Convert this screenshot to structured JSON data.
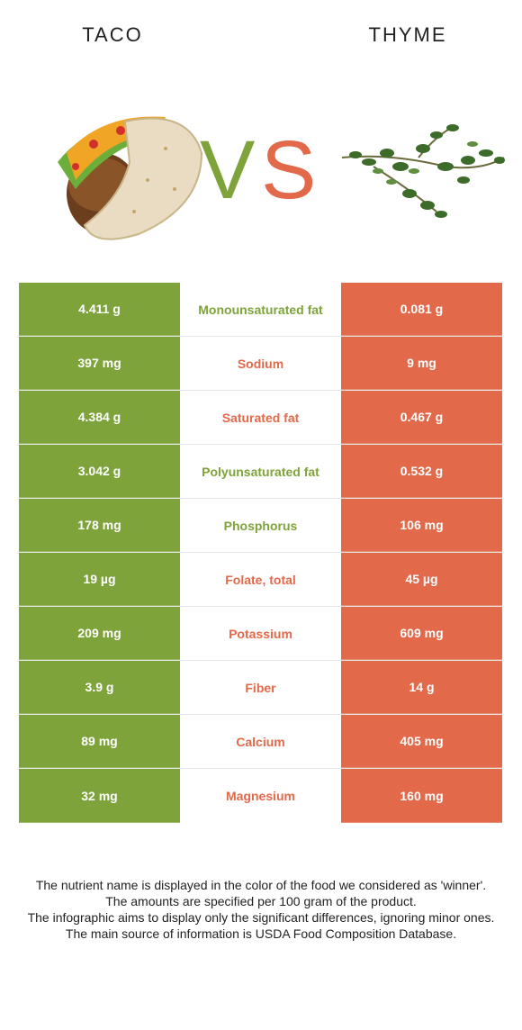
{
  "header": {
    "left_food": "TACO",
    "right_food": "THYME",
    "vs_label": "VS"
  },
  "colors": {
    "winner_left": "#7ea33a",
    "winner_right": "#e2694a"
  },
  "comparison": [
    {
      "nutrient": "Monounsaturated fat",
      "left": "4.411 g",
      "right": "0.081 g",
      "winner": "left"
    },
    {
      "nutrient": "Sodium",
      "left": "397 mg",
      "right": "9 mg",
      "winner": "right"
    },
    {
      "nutrient": "Saturated fat",
      "left": "4.384 g",
      "right": "0.467 g",
      "winner": "right"
    },
    {
      "nutrient": "Polyunsaturated fat",
      "left": "3.042 g",
      "right": "0.532 g",
      "winner": "left"
    },
    {
      "nutrient": "Phosphorus",
      "left": "178 mg",
      "right": "106 mg",
      "winner": "left"
    },
    {
      "nutrient": "Folate, total",
      "left": "19 µg",
      "right": "45 µg",
      "winner": "right"
    },
    {
      "nutrient": "Potassium",
      "left": "209 mg",
      "right": "609 mg",
      "winner": "right"
    },
    {
      "nutrient": "Fiber",
      "left": "3.9 g",
      "right": "14 g",
      "winner": "right"
    },
    {
      "nutrient": "Calcium",
      "left": "89 mg",
      "right": "405 mg",
      "winner": "right"
    },
    {
      "nutrient": "Magnesium",
      "left": "32 mg",
      "right": "160 mg",
      "winner": "right"
    }
  ],
  "footnote": {
    "line1": "The nutrient name is displayed in the color of the food we considered as 'winner'.",
    "line2": "The amounts are specified per 100 gram of the product.",
    "line3": "The infographic aims to display only the significant differences, ignoring minor ones.",
    "line4": "The main source of information is USDA Food Composition Database."
  }
}
